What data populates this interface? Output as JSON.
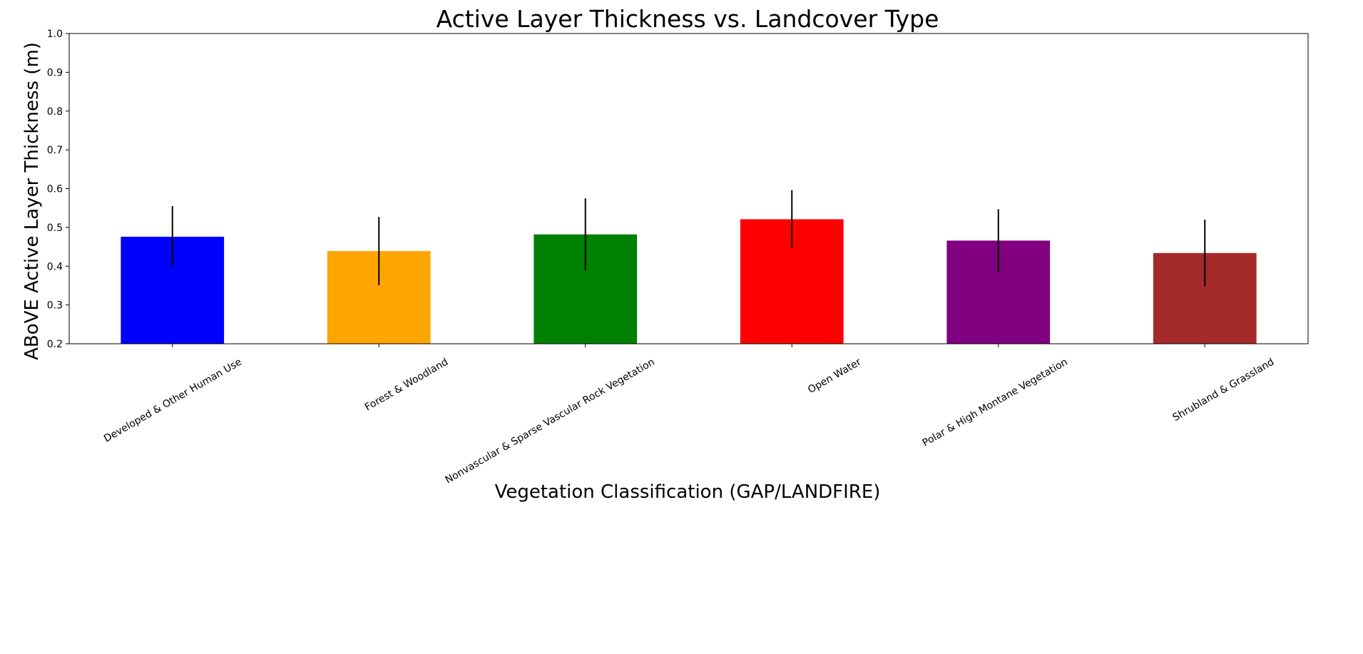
{
  "chart_data": {
    "type": "bar",
    "title": "Active Layer Thickness vs. Landcover Type",
    "xlabel": "Vegetation Classification (GAP/LANDFIRE)",
    "ylabel": "ABoVE Active Layer Thickness (m)",
    "ylim": [
      0.2,
      1.0
    ],
    "yticks": [
      "0.2",
      "0.3",
      "0.4",
      "0.5",
      "0.6",
      "0.7",
      "0.8",
      "0.9",
      "1.0"
    ],
    "grid": false,
    "categories": [
      "Developed & Other Human Use",
      "Forest & Woodland",
      "Nonvascular & Sparse Vascular Rock Vegetation",
      "Open Water",
      "Polar & High Montane Vegetation",
      "Shrubland & Grassland"
    ],
    "values": [
      0.476,
      0.439,
      0.482,
      0.521,
      0.466,
      0.434
    ],
    "errors": [
      0.079,
      0.088,
      0.093,
      0.075,
      0.081,
      0.086
    ],
    "colors": [
      "#0000ff",
      "#ffa500",
      "#008000",
      "#ff0000",
      "#800080",
      "#a52a2a"
    ]
  }
}
